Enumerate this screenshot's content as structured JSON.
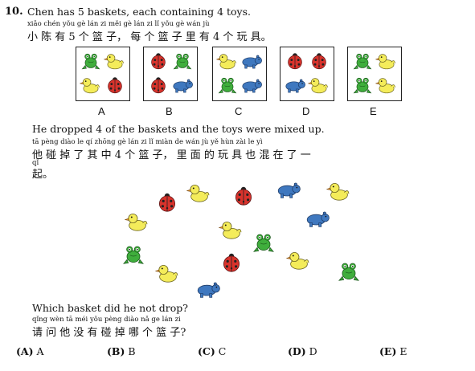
{
  "question": {
    "number": "10.",
    "line1_en": "Chen has 5 baskets, each containing 4 toys.",
    "line1_pinyin": "xiǎo  chén  yǒu        gè  lán   zi    měi  gè  lán    zi     lǐ   yǒu        gè   wán   jù",
    "line1_zh": "小 陈 有  5  个 篮 子， 每 个 篮 子 里 有  4  个 玩 具。",
    "line2_en": "He dropped 4 of the baskets and the toys were mixed up.",
    "line2_pinyin": "tā  pèng diào  le    qí  zhōng        gè   lán    zi      lǐ  miàn  de   wán   jù    yě   hùn  zài   le    yì",
    "line2_zh": "他 碰 掉 了 其 中  4  个 篮 子， 里 面 的 玩 具 也 混 在 了 一",
    "line2b_pinyin": "qǐ",
    "line2b_zh": "起。",
    "line3_en": "Which basket did he not drop?",
    "line3_pinyin": "qǐng  wèn   tā   méi  yǒu pèng diào  nǎ   ge    lán   zi",
    "line3_zh": "请 问 他 没 有 碰 掉 哪 个 篮 子?"
  },
  "baskets": [
    {
      "label": "A",
      "toys": [
        "frog",
        "duck",
        "duck",
        "ladybug"
      ]
    },
    {
      "label": "B",
      "toys": [
        "ladybug",
        "frog",
        "ladybug",
        "hippo"
      ]
    },
    {
      "label": "C",
      "toys": [
        "duck",
        "hippo",
        "frog",
        "hippo"
      ]
    },
    {
      "label": "D",
      "toys": [
        "ladybug",
        "ladybug",
        "hippo",
        "duck"
      ]
    },
    {
      "label": "E",
      "toys": [
        "frog",
        "duck",
        "frog",
        "duck"
      ]
    }
  ],
  "choices": [
    {
      "key": "(A)",
      "text": "A"
    },
    {
      "key": "(B)",
      "text": "B"
    },
    {
      "key": "(C)",
      "text": "C"
    },
    {
      "key": "(D)",
      "text": "D"
    },
    {
      "key": "(E)",
      "text": "E"
    }
  ],
  "colors": {
    "duck": "#f4ec5a",
    "frog": "#3fae3c",
    "ladybug": "#d8332c",
    "hippo": "#3f78bf"
  }
}
